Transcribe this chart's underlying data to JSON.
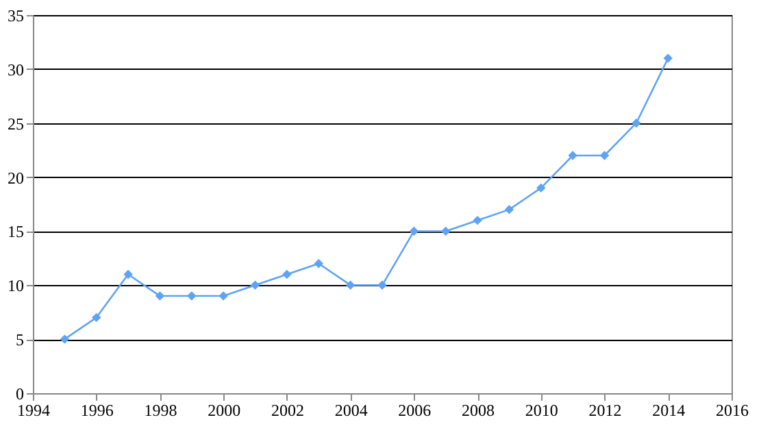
{
  "chart_data": {
    "type": "line",
    "x": [
      1995,
      1996,
      1997,
      1998,
      1999,
      2000,
      2001,
      2002,
      2003,
      2004,
      2005,
      2006,
      2007,
      2008,
      2009,
      2010,
      2011,
      2012,
      2013,
      2014
    ],
    "series": [
      {
        "color": "#5ea3f5",
        "values": [
          5,
          7,
          11,
          9,
          9,
          9,
          10,
          11,
          12,
          10,
          10,
          15,
          15,
          16,
          17,
          19,
          22,
          22,
          25,
          31
        ]
      }
    ],
    "xlim": [
      1994,
      2016
    ],
    "xticks": [
      1994,
      1996,
      1998,
      2000,
      2002,
      2004,
      2006,
      2008,
      2010,
      2012,
      2014,
      2016
    ],
    "ylim": [
      0,
      35
    ],
    "yticks": [
      0,
      5,
      10,
      15,
      20,
      25,
      30,
      35
    ],
    "grid": "y",
    "marker": "diamond",
    "line_style": "solid"
  }
}
